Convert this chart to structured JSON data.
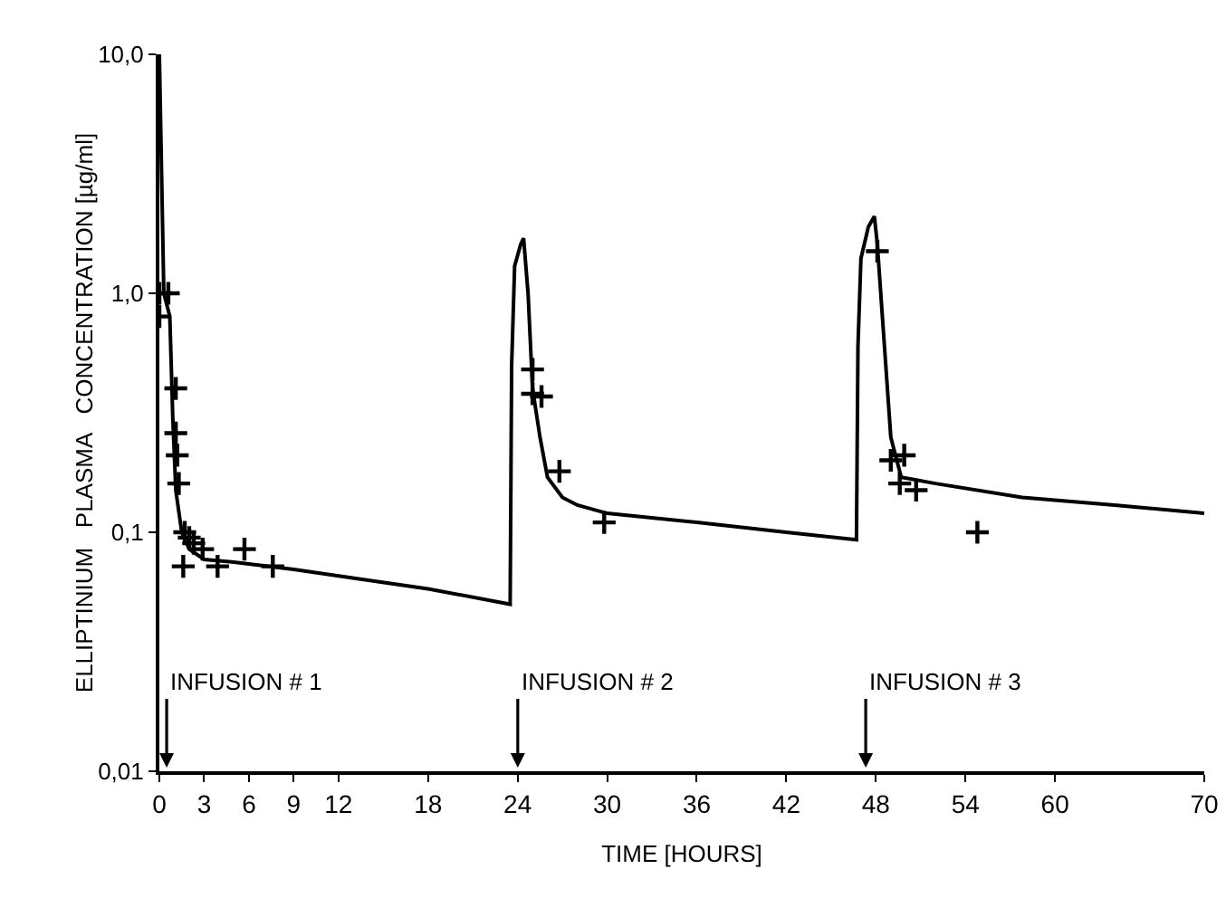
{
  "chart_data": {
    "type": "scatter",
    "xlabel": "TIME [HOURS]",
    "ylabel": "ELLIPTINIUM   PLASMA   CONCENTRATION [µg/ml]",
    "log": "y",
    "grid": false,
    "xlim": [
      0,
      70
    ],
    "xticks": [
      0,
      3,
      6,
      9,
      12,
      18,
      24,
      30,
      36,
      42,
      48,
      54,
      60,
      70
    ],
    "ylim": [
      0.01,
      10
    ],
    "yticks": [
      {
        "value": 0.01,
        "label": "0,01"
      },
      {
        "value": 0.1,
        "label": "0,1"
      },
      {
        "value": 1,
        "label": "1,0"
      },
      {
        "value": 10,
        "label": "10,0"
      }
    ],
    "series": [
      {
        "type": "line",
        "color": "#000000",
        "marker": "none",
        "line_style": "solid",
        "x": [
          0,
          0.3,
          0.7,
          0.9,
          1.1,
          1.5,
          2,
          3,
          5,
          9,
          14,
          18,
          23.5,
          23.6,
          23.8,
          24.2,
          24.4,
          24.7,
          25,
          25.5,
          26,
          27,
          28,
          30,
          36,
          42,
          46.7,
          46.8,
          47,
          47.5,
          47.9,
          48.1,
          48.5,
          49,
          49.7,
          52,
          57.8,
          64,
          70
        ],
        "values": [
          10,
          1.0,
          0.8,
          0.3,
          0.15,
          0.1,
          0.085,
          0.077,
          0.075,
          0.07,
          0.063,
          0.058,
          0.05,
          0.5,
          1.3,
          1.6,
          1.7,
          1.0,
          0.4,
          0.25,
          0.17,
          0.14,
          0.13,
          0.12,
          0.11,
          0.1,
          0.093,
          0.6,
          1.4,
          1.9,
          2.1,
          1.6,
          0.7,
          0.25,
          0.17,
          0.16,
          0.14,
          0.13,
          0.12
        ]
      },
      {
        "color": "#000000",
        "marker": "cross",
        "x": [
          0,
          0,
          0.6,
          1.1,
          1.1,
          1.2,
          1.3,
          1.7,
          2.0,
          2.3,
          2.9,
          1.6,
          3.9,
          5.7,
          7.6,
          25,
          25,
          25.6,
          26.8,
          29.8,
          48.1,
          49,
          49.9,
          49.6,
          50.7,
          54.8
        ],
        "values": [
          1.0,
          0.8,
          1.0,
          0.4,
          0.26,
          0.21,
          0.16,
          0.1,
          0.095,
          0.09,
          0.085,
          0.072,
          0.072,
          0.085,
          0.072,
          0.48,
          0.38,
          0.37,
          0.18,
          0.11,
          1.5,
          0.2,
          0.21,
          0.16,
          0.15,
          0.1
        ]
      }
    ],
    "annotations": [
      "INFUSION # 1",
      "INFUSION # 2",
      "INFUSION # 3"
    ]
  }
}
